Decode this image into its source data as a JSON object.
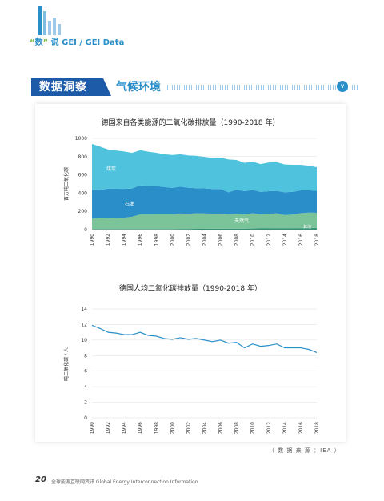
{
  "header": {
    "brand_quote_open": "“",
    "brand_char": "数",
    "brand_quote_close": "”",
    "brand_rest": "说 GEI / GEI Data"
  },
  "banner": {
    "section": "数据洞察",
    "title": "气候环境",
    "chevron": "∨"
  },
  "chart1": {
    "title": "德国来自各类能源的二氧化碳排放量（1990-2018 年）",
    "ylabel": "百万吨二氧化碳",
    "yticks": [
      "0",
      "200",
      "400",
      "600",
      "800",
      "1000"
    ],
    "xticks": [
      "1990",
      "1992",
      "1994",
      "1996",
      "1998",
      "2000",
      "2002",
      "2004",
      "2006",
      "2008",
      "2010",
      "2012",
      "2014",
      "2016",
      "2018"
    ],
    "labels": {
      "coal": "煤炭",
      "oil": "石油",
      "gas": "天然气",
      "other": "其他"
    }
  },
  "chart2": {
    "title": "德国人均二氧化碳排放量（1990-2018 年）",
    "ylabel": "吨二氧化碳 / 人",
    "yticks": [
      "0",
      "2",
      "4",
      "6",
      "8",
      "10",
      "12",
      "14"
    ],
    "xticks": [
      "1990",
      "1992",
      "1994",
      "1996",
      "1998",
      "2000",
      "2002",
      "2004",
      "2006",
      "2008",
      "2010",
      "2012",
      "2014",
      "2016",
      "2018"
    ]
  },
  "chart_data": [
    {
      "type": "area",
      "title": "德国来自各类能源的二氧化碳排放量（1990-2018 年）",
      "xlabel": "",
      "ylabel": "百万吨二氧化碳",
      "ylim": [
        0,
        1000
      ],
      "x": [
        1990,
        1991,
        1992,
        1993,
        1994,
        1995,
        1996,
        1997,
        1998,
        1999,
        2000,
        2001,
        2002,
        2003,
        2004,
        2005,
        2006,
        2007,
        2008,
        2009,
        2010,
        2011,
        2012,
        2013,
        2014,
        2015,
        2016,
        2017,
        2018
      ],
      "stacked": true,
      "grid": true,
      "series": [
        {
          "name": "其他",
          "color": "#1f8a70",
          "values": [
            5,
            5,
            5,
            5,
            6,
            6,
            6,
            6,
            7,
            7,
            7,
            8,
            8,
            9,
            9,
            10,
            10,
            11,
            11,
            11,
            12,
            13,
            13,
            14,
            14,
            15,
            15,
            16,
            16
          ]
        },
        {
          "name": "天然气",
          "color": "#7bc49a",
          "values": [
            115,
            120,
            118,
            122,
            125,
            135,
            160,
            158,
            160,
            160,
            160,
            168,
            165,
            170,
            168,
            165,
            165,
            158,
            162,
            155,
            168,
            155,
            158,
            165,
            145,
            150,
            165,
            170,
            168
          ]
        },
        {
          "name": "石油",
          "color": "#2a8fc8",
          "values": [
            315,
            310,
            325,
            320,
            315,
            310,
            320,
            315,
            310,
            300,
            290,
            295,
            285,
            275,
            275,
            270,
            270,
            240,
            265,
            255,
            255,
            245,
            250,
            245,
            250,
            250,
            250,
            245,
            240
          ]
        },
        {
          "name": "煤炭",
          "color": "#4fc3de",
          "values": [
            505,
            475,
            430,
            420,
            410,
            390,
            385,
            375,
            365,
            360,
            360,
            355,
            355,
            355,
            345,
            340,
            345,
            360,
            325,
            310,
            310,
            305,
            315,
            315,
            305,
            295,
            280,
            270,
            260
          ]
        }
      ]
    },
    {
      "type": "line",
      "title": "德国人均二氧化碳排放量（1990-2018 年）",
      "xlabel": "",
      "ylabel": "吨二氧化碳 / 人",
      "ylim": [
        0,
        14
      ],
      "grid": true,
      "x": [
        1990,
        1991,
        1992,
        1993,
        1994,
        1995,
        1996,
        1997,
        1998,
        1999,
        2000,
        2001,
        2002,
        2003,
        2004,
        2005,
        2006,
        2007,
        2008,
        2009,
        2010,
        2011,
        2012,
        2013,
        2014,
        2015,
        2016,
        2017,
        2018
      ],
      "series": [
        {
          "color": "#2a8fc8",
          "values": [
            11.9,
            11.5,
            11.0,
            10.9,
            10.7,
            10.7,
            11.0,
            10.6,
            10.5,
            10.2,
            10.1,
            10.3,
            10.1,
            10.2,
            10.0,
            9.8,
            10.0,
            9.6,
            9.7,
            9.0,
            9.5,
            9.2,
            9.3,
            9.5,
            9.0,
            9.0,
            9.0,
            8.8,
            8.4
          ]
        }
      ]
    }
  ],
  "source": "（ 数 据 来 源 ：IEA ）",
  "footer": {
    "page": "20",
    "text": "全球能源互联网资讯  Global Energy Interconnection Information"
  }
}
